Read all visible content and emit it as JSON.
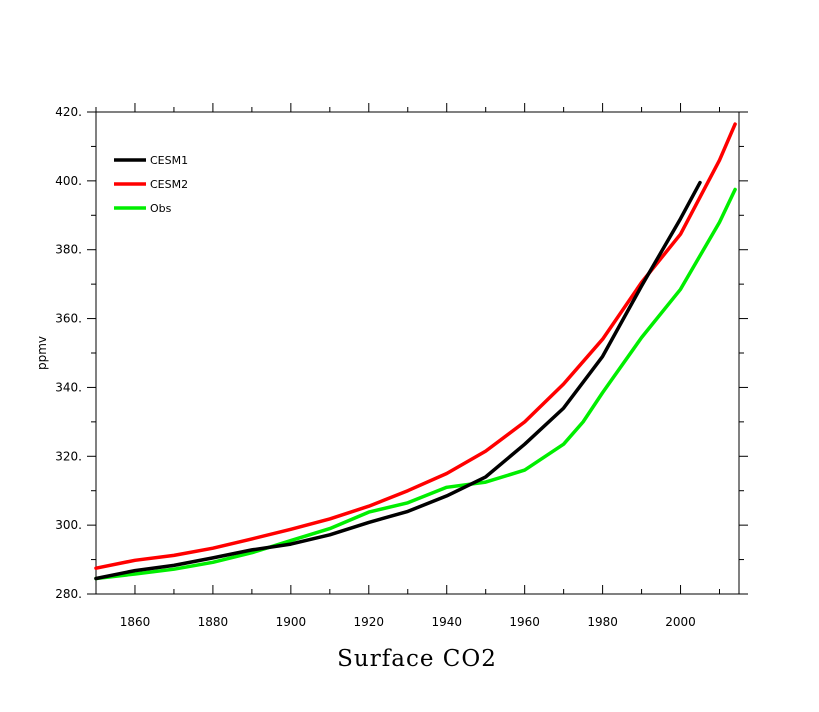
{
  "chart_data": {
    "type": "line",
    "title": "Surface CO2",
    "xlabel": "",
    "ylabel": "ppmv",
    "xlim": [
      1850,
      2015
    ],
    "ylim": [
      280,
      420
    ],
    "x_ticks": [
      1860,
      1880,
      1900,
      1920,
      1940,
      1960,
      1980,
      2000
    ],
    "x_tick_labels": [
      "1860",
      "1880",
      "1900",
      "1920",
      "1940",
      "1960",
      "1980",
      "2000"
    ],
    "y_ticks": [
      280,
      300,
      320,
      340,
      360,
      380,
      400,
      420
    ],
    "y_tick_labels": [
      "280.",
      "300.",
      "320.",
      "340.",
      "360.",
      "380.",
      "400.",
      "420."
    ],
    "grid": false,
    "legend_position": "top-left",
    "series": [
      {
        "name": "CESM1",
        "color": "#000000",
        "x": [
          1850,
          1860,
          1870,
          1880,
          1890,
          1900,
          1910,
          1920,
          1930,
          1940,
          1950,
          1960,
          1970,
          1980,
          1990,
          2000,
          2005
        ],
        "y": [
          284.5,
          286.8,
          288.3,
          290.5,
          292.8,
          294.5,
          297.2,
          300.8,
          304.0,
          308.5,
          314.0,
          323.5,
          334.0,
          349.0,
          369.5,
          389.0,
          399.5
        ]
      },
      {
        "name": "CESM2",
        "color": "#ff0000",
        "x": [
          1850,
          1860,
          1870,
          1880,
          1890,
          1900,
          1910,
          1920,
          1930,
          1940,
          1950,
          1960,
          1970,
          1980,
          1990,
          2000,
          2010,
          2014
        ],
        "y": [
          287.5,
          289.8,
          291.2,
          293.3,
          296.0,
          298.8,
          301.8,
          305.5,
          310.0,
          315.0,
          321.5,
          330.0,
          341.0,
          354.0,
          370.5,
          384.5,
          406.0,
          416.5
        ]
      },
      {
        "name": "Obs",
        "color": "#00ee00",
        "x": [
          1850,
          1860,
          1870,
          1880,
          1890,
          1900,
          1910,
          1920,
          1930,
          1940,
          1950,
          1960,
          1970,
          1975,
          1980,
          1990,
          2000,
          2010,
          2014
        ],
        "y": [
          284.5,
          285.8,
          287.2,
          289.2,
          292.0,
          295.5,
          299.0,
          303.8,
          306.5,
          311.0,
          312.5,
          316.0,
          323.5,
          330.0,
          338.5,
          354.5,
          368.5,
          388.0,
          397.5
        ]
      }
    ]
  }
}
